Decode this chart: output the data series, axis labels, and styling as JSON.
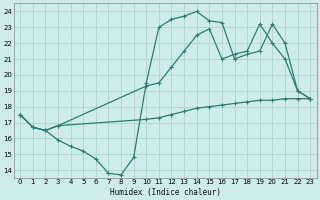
{
  "xlabel": "Humidex (Indice chaleur)",
  "bg_color": "#ceecea",
  "line_color": "#2e7d72",
  "grid_color": "#aed4d0",
  "xlim": [
    -0.5,
    23.5
  ],
  "ylim": [
    13.5,
    24.5
  ],
  "yticks": [
    14,
    15,
    16,
    17,
    18,
    19,
    20,
    21,
    22,
    23,
    24
  ],
  "xticks": [
    0,
    1,
    2,
    3,
    4,
    5,
    6,
    7,
    8,
    9,
    10,
    11,
    12,
    13,
    14,
    15,
    16,
    17,
    18,
    19,
    20,
    21,
    22,
    23
  ],
  "line1_x": [
    0,
    1,
    2,
    3,
    4,
    5,
    6,
    7,
    8,
    9,
    10,
    11,
    12,
    13,
    14,
    15,
    16,
    17,
    18,
    19,
    20,
    21,
    22,
    23
  ],
  "line1_y": [
    17.5,
    16.7,
    16.5,
    15.9,
    15.5,
    15.2,
    14.7,
    13.8,
    13.7,
    14.8,
    19.5,
    23.0,
    23.5,
    23.7,
    24.0,
    23.4,
    23.3,
    21.0,
    21.3,
    21.5,
    23.2,
    22.0,
    19.0,
    18.5
  ],
  "line2_x": [
    0,
    1,
    2,
    3,
    10,
    11,
    12,
    13,
    14,
    15,
    16,
    17,
    18,
    19,
    20,
    21,
    22,
    23
  ],
  "line2_y": [
    17.5,
    16.7,
    16.5,
    16.8,
    19.3,
    19.5,
    20.5,
    21.5,
    22.5,
    22.9,
    21.0,
    21.3,
    21.5,
    23.2,
    22.0,
    21.0,
    19.0,
    18.5
  ],
  "line3_x": [
    0,
    1,
    2,
    3,
    10,
    11,
    12,
    13,
    14,
    15,
    16,
    17,
    18,
    19,
    20,
    21,
    22,
    23
  ],
  "line3_y": [
    17.5,
    16.7,
    16.5,
    16.8,
    17.2,
    17.3,
    17.5,
    17.7,
    17.9,
    18.0,
    18.1,
    18.2,
    18.3,
    18.4,
    18.4,
    18.5,
    18.5,
    18.5
  ]
}
